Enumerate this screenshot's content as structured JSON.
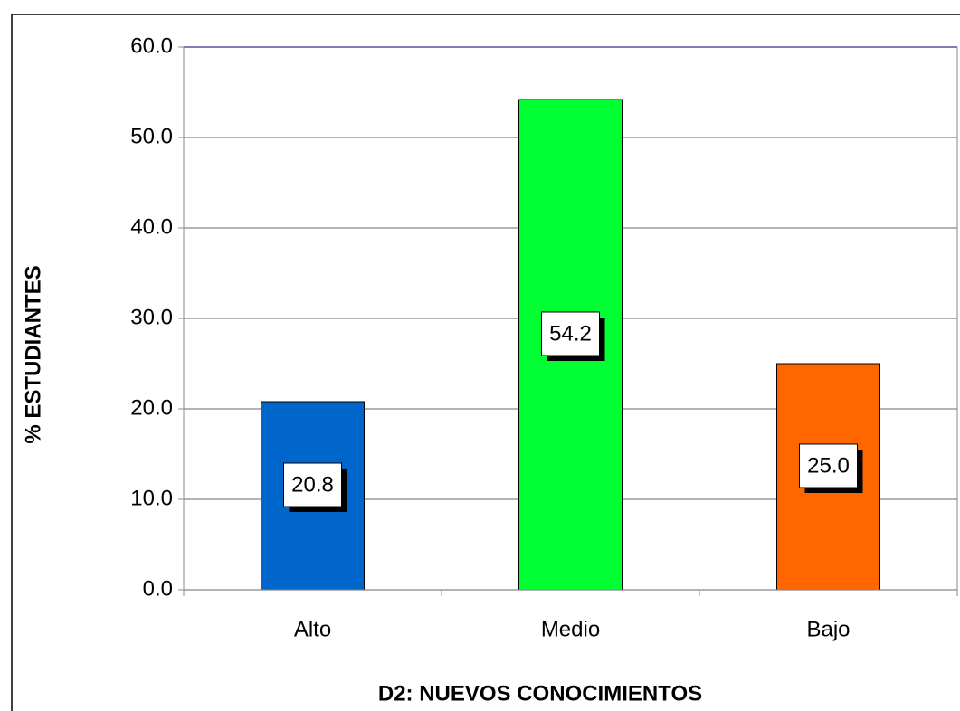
{
  "chart_data": {
    "type": "bar",
    "xlabel": "D2: NUEVOS CONOCIMIENTOS",
    "ylabel": "% ESTUDIANTES",
    "categories": [
      "Alto",
      "Medio",
      "Bajo"
    ],
    "values": [
      20.8,
      54.2,
      25.0
    ],
    "value_labels": [
      "20.8",
      "54.2",
      "25.0"
    ],
    "colors": [
      "#0066cc",
      "#00ff33",
      "#ff6600"
    ],
    "ylim": [
      0,
      60
    ],
    "yticks": [
      {
        "value": 0,
        "label": "0.0"
      },
      {
        "value": 10,
        "label": "10.0"
      },
      {
        "value": 20,
        "label": "20.0"
      },
      {
        "value": 30,
        "label": "30.0"
      },
      {
        "value": 40,
        "label": "40.0"
      },
      {
        "value": 50,
        "label": "50.0"
      },
      {
        "value": 60,
        "label": "60.0"
      }
    ],
    "grid": true
  }
}
